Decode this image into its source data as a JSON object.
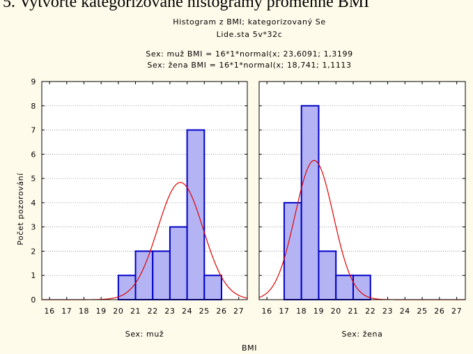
{
  "chart_data": {
    "type": "histogram",
    "heading": "5. Vytvořte kategorizované histogramy proměnné BMI",
    "title": "Histogram z BMI; kategorizovaný Se",
    "subtitle": "Lide.sta 5v*32c",
    "annotations": [
      "Sex: muž BMI = 16*1*normal(x; 23,6091; 1,3199",
      "Sex: žena BMI = 16*1*normal(x; 18,741; 1,1113"
    ],
    "xlabel": "BMI",
    "ylabel": "Počet pozorování",
    "xlim": [
      15.55,
      27.5
    ],
    "ylim": [
      0,
      9
    ],
    "yticks": [
      0,
      1,
      2,
      3,
      4,
      5,
      6,
      7,
      8,
      9
    ],
    "xticks": [
      16,
      17,
      18,
      19,
      20,
      21,
      22,
      23,
      24,
      25,
      26,
      27
    ],
    "grid": true,
    "bar_color": "#b4b4f4",
    "edge_color": "#0000c8",
    "curve_color": "#e00000",
    "panels": [
      {
        "label": "Sex: muž",
        "bins": [
          16,
          17,
          18,
          19,
          20,
          21,
          22,
          23,
          24,
          25,
          26,
          27
        ],
        "counts": [
          0,
          0,
          0,
          0,
          1,
          2,
          2,
          3,
          7,
          1,
          0
        ],
        "fit": {
          "n": 16,
          "mean": 23.6091,
          "sd": 1.3199
        }
      },
      {
        "label": "Sex: žena",
        "bins": [
          16,
          17,
          18,
          19,
          20,
          21,
          22,
          23,
          24,
          25,
          26,
          27
        ],
        "counts": [
          0,
          4,
          8,
          2,
          1,
          1,
          0,
          0,
          0,
          0,
          0
        ],
        "fit": {
          "n": 16,
          "mean": 18.741,
          "sd": 1.1113
        }
      }
    ]
  }
}
